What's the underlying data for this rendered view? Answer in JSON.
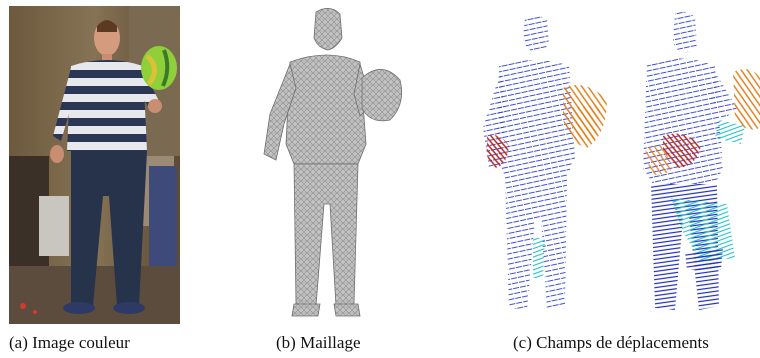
{
  "figure": {
    "captions": {
      "a": "(a) Image couleur",
      "b": "(b) Maillage",
      "c": "(c) Champs de déplacements"
    },
    "colors": {
      "mesh": "#bdbdbd",
      "mesh_edge": "#6f6f6f",
      "vector_low": "#2a3bd0",
      "vector_mid": "#22c4c8",
      "vector_high": "#e07a10",
      "vector_peak": "#b8261a",
      "shirt_stripe_dark": "#2b3554",
      "shirt_stripe_light": "#e6e8ee",
      "ball": "#8fcf3a"
    },
    "icons": {
      "photo": "photo-of-person-holding-ball",
      "mesh": "grey-3d-mesh-silhouette",
      "field": "displacement-vector-field"
    }
  }
}
